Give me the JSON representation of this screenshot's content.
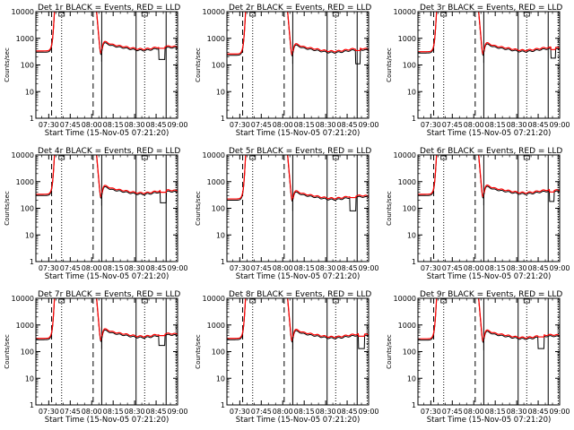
{
  "chart_data": {
    "type": "line",
    "layout": {
      "rows": 3,
      "cols": 3
    },
    "x_ticks": [
      "07:30",
      "07:45",
      "08:00",
      "08:15",
      "08:30",
      "08:45",
      "09:00"
    ],
    "x_ticks_minutes_after_0730": [
      0,
      15,
      30,
      45,
      60,
      75,
      90
    ],
    "xlim_minutes_after_0730": [
      -9,
      90
    ],
    "xlabel": "Start Time (15-Nov-05 07:21:20)",
    "ylabel": "Counts/sec",
    "y_scale": "log",
    "ylim": [
      1,
      10000
    ],
    "y_ticks": [
      1,
      10,
      100,
      1000,
      10000
    ],
    "y_tick_labels": [
      "1",
      "10",
      "100",
      "1000",
      "10000"
    ],
    "colors": {
      "events": "#000000",
      "lld": "#ff0000"
    },
    "vertical_lines": [
      {
        "x": 2,
        "style": "dashed"
      },
      {
        "x": 9,
        "style": "dotted"
      },
      {
        "x": 31,
        "style": "dashed"
      },
      {
        "x": 37,
        "style": "solid"
      },
      {
        "x": 61,
        "style": "solid"
      },
      {
        "x": 67,
        "style": "dotted"
      },
      {
        "x": 82,
        "style": "solid"
      },
      {
        "x": 89,
        "style": "dotted"
      }
    ],
    "panels": [
      {
        "title": "Det 1r BLACK = Events, RED = LLD",
        "base": 400,
        "pre": 300,
        "dip_x": [
          77,
          81
        ],
        "dip_level": 160
      },
      {
        "title": "Det 2r BLACK = Events, RED = LLD",
        "base": 330,
        "pre": 230,
        "dip_x": [
          81,
          84
        ],
        "dip_level": 110
      },
      {
        "title": "Det 3r BLACK = Events, RED = LLD",
        "base": 360,
        "pre": 280,
        "dip_x": [
          84,
          87
        ],
        "dip_level": 180
      },
      {
        "title": "Det 4r BLACK = Events, RED = LLD",
        "base": 380,
        "pre": 300,
        "dip_x": [
          78,
          82
        ],
        "dip_level": 160
      },
      {
        "title": "Det 5r BLACK = Events, RED = LLD",
        "base": 240,
        "pre": 200,
        "dip_x": [
          77,
          81
        ],
        "dip_level": 80
      },
      {
        "title": "Det 6r BLACK = Events, RED = LLD",
        "base": 390,
        "pre": 300,
        "dip_x": [
          83,
          86
        ],
        "dip_level": 180
      },
      {
        "title": "Det 7r BLACK = Events, RED = LLD",
        "base": 380,
        "pre": 280,
        "dip_x": [
          77,
          81
        ],
        "dip_level": 170
      },
      {
        "title": "Det 8r BLACK = Events, RED = LLD",
        "base": 360,
        "pre": 280,
        "dip_x": [
          83,
          87
        ],
        "dip_level": 130
      },
      {
        "title": "Det 9r BLACK = Events, RED = LLD",
        "base": 340,
        "pre": 270,
        "dip_x": [
          75,
          79
        ],
        "dip_level": 130
      }
    ]
  }
}
